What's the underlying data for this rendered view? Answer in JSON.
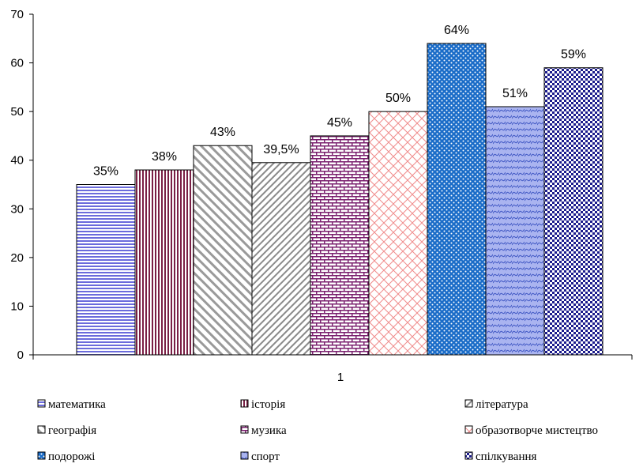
{
  "chart_data": {
    "type": "bar",
    "categories": [
      "1"
    ],
    "ylim": [
      0,
      70
    ],
    "yticks": [
      0,
      10,
      20,
      30,
      40,
      50,
      60,
      70
    ],
    "grid": false,
    "legend_position": "bottom",
    "series": [
      {
        "name": "математика",
        "values": [
          35
        ],
        "label": "35%",
        "color": "#6b6bdc",
        "pattern": "horizontal-lines"
      },
      {
        "name": "історія",
        "values": [
          38
        ],
        "label": "38%",
        "color": "#7a1f45",
        "pattern": "vertical-lines"
      },
      {
        "name": "географія",
        "values": [
          43
        ],
        "label": "43%",
        "color": "#8f8f8f",
        "pattern": "diagonal-up"
      },
      {
        "name": "література",
        "values": [
          39.5
        ],
        "label": "39,5%",
        "color": "#8f8f8f",
        "pattern": "diagonal-down"
      },
      {
        "name": "музика",
        "values": [
          45
        ],
        "label": "45%",
        "color": "#7a1f6e",
        "pattern": "brick"
      },
      {
        "name": "образотворче мистецтво",
        "values": [
          50
        ],
        "label": "50%",
        "color": "#f08c8c",
        "pattern": "diagonal-cross"
      },
      {
        "name": "подорожі",
        "values": [
          64
        ],
        "label": "64%",
        "color": "#1a6cc8",
        "pattern": "dots"
      },
      {
        "name": "спорт",
        "values": [
          51
        ],
        "label": "51%",
        "color": "#4a60c8",
        "pattern": "wave"
      },
      {
        "name": "спілкування",
        "values": [
          59
        ],
        "label": "59%",
        "color": "#1b1b8c",
        "pattern": "checker"
      }
    ],
    "legend_order": [
      "математика",
      "історія",
      "література",
      "географія",
      "музика",
      "образотворче мистецтво",
      "подорожі",
      "спорт",
      "спілкування"
    ]
  }
}
